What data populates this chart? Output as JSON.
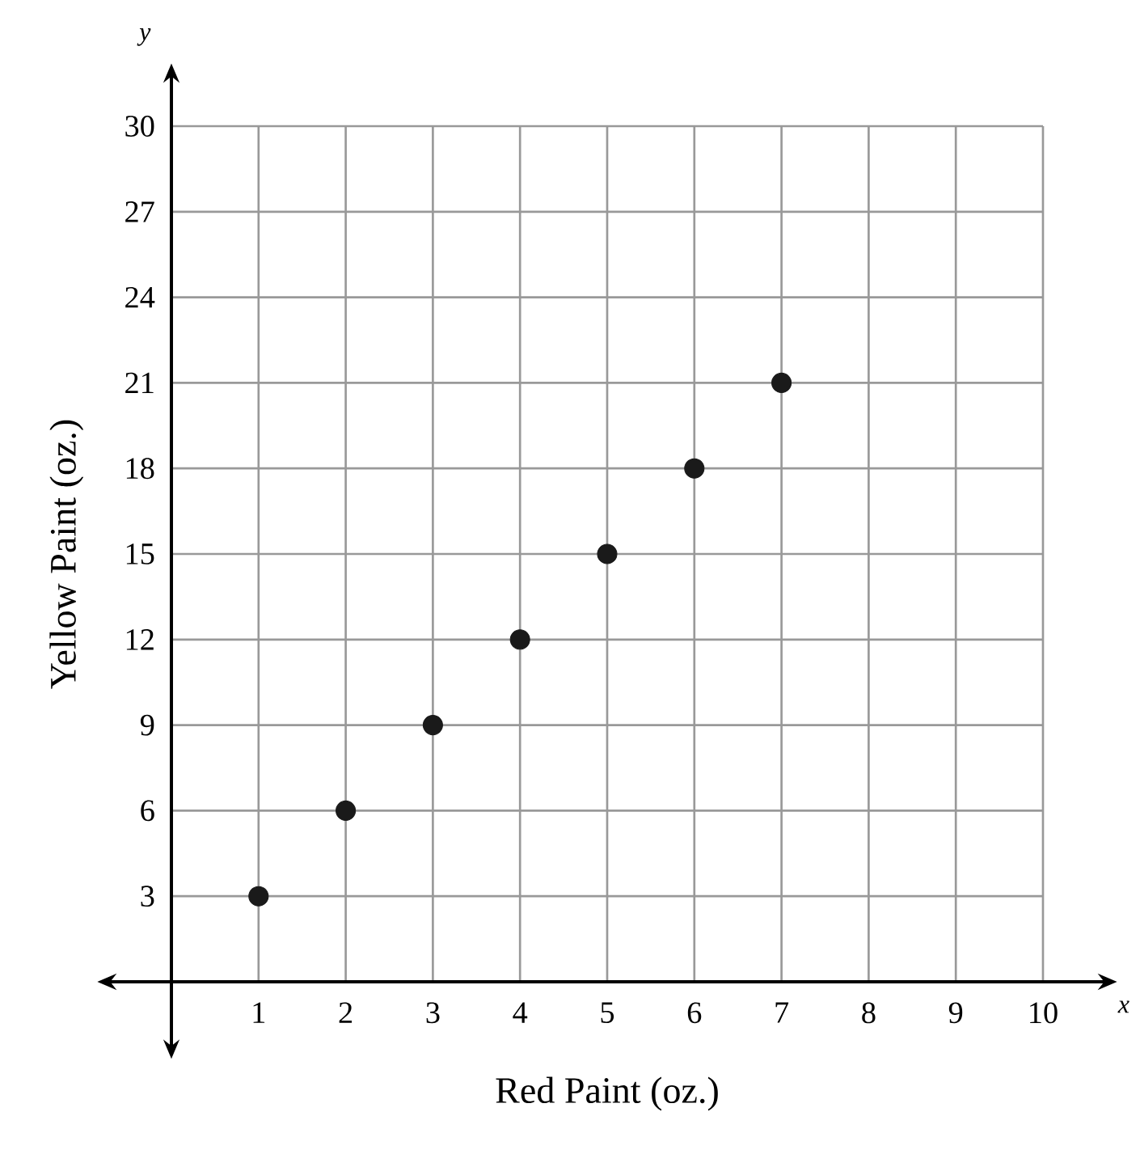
{
  "chart_data": {
    "type": "scatter",
    "xlabel": "Red Paint (oz.)",
    "ylabel": "Yellow Paint (oz.)",
    "annotations": [
      "y",
      "x"
    ],
    "x": [
      1,
      2,
      3,
      4,
      5,
      6,
      7
    ],
    "values": [
      3,
      6,
      9,
      12,
      15,
      18,
      21
    ],
    "color": "#1a1a1a",
    "marker": "circle",
    "xlim": [
      0,
      10
    ],
    "ylim": [
      0,
      30
    ],
    "xticks": [
      1,
      2,
      3,
      4,
      5,
      6,
      7,
      8,
      9,
      10
    ],
    "yticks": [
      3,
      6,
      9,
      12,
      15,
      18,
      21,
      24,
      27,
      30
    ],
    "grid": true
  }
}
